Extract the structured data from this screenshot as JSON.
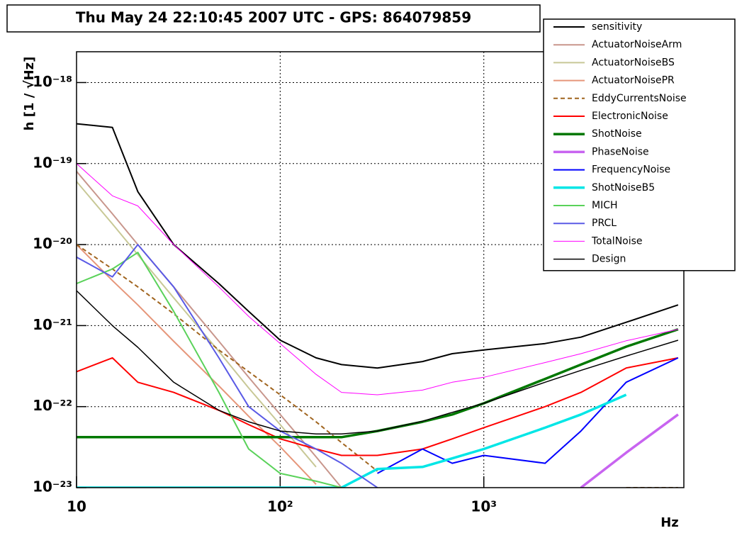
{
  "chart_data": {
    "type": "line",
    "title": "Thu May 24 22:10:45 2007 UTC - GPS: 864079859",
    "x_label": "Hz",
    "y_label": "h [1 / √Hz]",
    "xlog": true,
    "ylog": true,
    "grid": true,
    "legend": "upper right",
    "xlim": [
      10,
      9600
    ],
    "ylim": [
      1e-23,
      2.4e-18
    ],
    "xticks": [
      10,
      {
        "value": 100,
        "label": "10²"
      },
      {
        "value": 1000,
        "label": "10³"
      }
    ],
    "yticks": [
      {
        "value": 1e-23,
        "label": "10⁻²³"
      },
      {
        "value": 1e-22,
        "label": "10⁻²²"
      },
      {
        "value": 1e-21,
        "label": "10⁻²¹"
      },
      {
        "value": 1e-20,
        "label": "10⁻²⁰"
      },
      {
        "value": 1e-19,
        "label": "10⁻¹⁹"
      },
      {
        "value": 1e-18,
        "label": "10⁻¹⁸"
      }
    ],
    "x": [
      10,
      15,
      20,
      30,
      50,
      70,
      100,
      150,
      200,
      300,
      500,
      700,
      1000,
      2000,
      3000,
      5000,
      9000
    ],
    "series": [
      {
        "name": "sensitivity",
        "color": "#000000",
        "width": 2,
        "values": [
          3.1e-19,
          2.8e-19,
          4.5e-20,
          1e-20,
          3.3e-21,
          1.5e-21,
          6.6e-22,
          4e-22,
          3.3e-22,
          3e-22,
          3.6e-22,
          4.5e-22,
          5e-22,
          6e-22,
          7.2e-22,
          1.1e-21,
          1.8e-21
        ]
      },
      {
        "name": "ActuatorNoiseArm",
        "color": "#c8968c",
        "width": 2,
        "values": [
          8e-20,
          2.4e-20,
          1e-20,
          3e-21,
          6.4e-22,
          2.3e-22,
          8e-23,
          2.4e-23,
          1e-23,
          null,
          null,
          null,
          null,
          null,
          null,
          null,
          null
        ]
      },
      {
        "name": "ActuatorNoiseBS",
        "color": "#c8c896",
        "width": 2,
        "values": [
          6e-20,
          1.8e-20,
          7.5e-21,
          2.2e-21,
          4.8e-22,
          1.7e-22,
          6e-23,
          1.8e-23,
          null,
          null,
          null,
          null,
          null,
          null,
          null,
          null,
          null
        ]
      },
      {
        "name": "ActuatorNoisePR",
        "color": "#e6967a",
        "width": 2,
        "values": [
          1e-20,
          3.6e-21,
          1.8e-21,
          6.4e-22,
          1.8e-22,
          7.6e-23,
          3.2e-23,
          1.1e-23,
          null,
          null,
          null,
          null,
          null,
          null,
          null,
          null,
          null
        ]
      },
      {
        "name": "EddyCurrentsNoise",
        "color": "#a0641e",
        "width": 2,
        "dash": true,
        "values": [
          1e-20,
          5e-21,
          3e-21,
          1.4e-21,
          5e-22,
          2.7e-22,
          1.4e-22,
          6.5e-23,
          3.6e-23,
          1.6e-23,
          null,
          null,
          null,
          null,
          null,
          1e-23,
          1e-23
        ]
      },
      {
        "name": "ElectronicNoise",
        "color": "#ff0000",
        "width": 2,
        "values": [
          2.7e-22,
          4e-22,
          2e-22,
          1.5e-22,
          9e-23,
          6e-23,
          4e-23,
          3e-23,
          2.5e-23,
          2.5e-23,
          3e-23,
          4e-23,
          5.5e-23,
          1e-22,
          1.5e-22,
          3e-22,
          4e-22
        ]
      },
      {
        "name": "ShotNoise",
        "color": "#007800",
        "width": 3.5,
        "values": [
          4.2e-23,
          4.2e-23,
          4.2e-23,
          4.2e-23,
          4.2e-23,
          4.2e-23,
          4.2e-23,
          4.2e-23,
          4.2e-23,
          5e-23,
          6.5e-23,
          8e-23,
          1.1e-22,
          2.2e-22,
          3.3e-22,
          5.5e-22,
          9e-22
        ]
      },
      {
        "name": "PhaseNoise",
        "color": "#c864f0",
        "width": 3.5,
        "values": [
          null,
          null,
          null,
          null,
          null,
          null,
          null,
          null,
          null,
          null,
          null,
          null,
          null,
          null,
          1e-23,
          2.7e-23,
          8e-23
        ]
      },
      {
        "name": "FrequencyNoise",
        "color": "#0000ff",
        "width": 2,
        "values": [
          null,
          null,
          null,
          null,
          null,
          null,
          null,
          null,
          null,
          1.5e-23,
          3e-23,
          2e-23,
          2.5e-23,
          2e-23,
          5e-23,
          2e-22,
          4e-22
        ]
      },
      {
        "name": "ShotNoiseB5",
        "color": "#00e6e6",
        "width": 3.5,
        "values": [
          1e-23,
          1e-23,
          1e-23,
          1e-23,
          1e-23,
          1e-23,
          1e-23,
          1e-23,
          1e-23,
          1.7e-23,
          1.8e-23,
          2.3e-23,
          3e-23,
          5.5e-23,
          8e-23,
          1.4e-22,
          null
        ]
      },
      {
        "name": "MICH",
        "color": "#5ad25a",
        "width": 2,
        "values": [
          3.3e-21,
          5e-21,
          8e-21,
          1.5e-21,
          1.5e-22,
          3e-23,
          1.5e-23,
          1.2e-23,
          1e-23,
          null,
          null,
          null,
          null,
          null,
          null,
          null,
          null
        ]
      },
      {
        "name": "PRCL",
        "color": "#5a5ae6",
        "width": 2,
        "values": [
          7e-21,
          4e-21,
          1e-20,
          3e-21,
          4e-22,
          1e-22,
          5e-23,
          3e-23,
          2e-23,
          1e-23,
          null,
          null,
          null,
          null,
          null,
          null,
          null
        ]
      },
      {
        "name": "TotalNoise",
        "color": "#ff00ff",
        "width": 1,
        "values": [
          1e-19,
          4e-20,
          3e-20,
          1e-20,
          3e-21,
          1.3e-21,
          6e-22,
          2.5e-22,
          1.5e-22,
          1.4e-22,
          1.6e-22,
          2e-22,
          2.3e-22,
          3.5e-22,
          4.5e-22,
          6.5e-22,
          9e-22
        ]
      },
      {
        "name": "Design",
        "color": "#000000",
        "width": 1.5,
        "values": [
          2.7e-21,
          1e-21,
          5.4e-22,
          2e-22,
          9e-23,
          6.5e-23,
          5e-23,
          4.6e-23,
          4.6e-23,
          5e-23,
          6.6e-23,
          8.5e-23,
          1.1e-22,
          2e-22,
          2.8e-22,
          4.2e-22,
          6.6e-22
        ]
      }
    ]
  }
}
